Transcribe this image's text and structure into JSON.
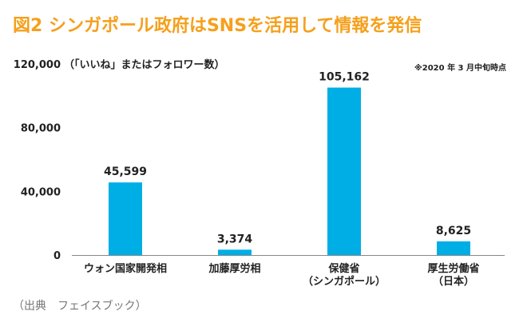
{
  "figure_title": "図2 シンガポール政府はSNSを活用して情報を発信",
  "note": "※2020 年 3 月中旬時点",
  "source": "（出典　フェイスブック）",
  "chart_data": {
    "type": "bar",
    "categories": [
      [
        "ウォン国家開発相"
      ],
      [
        "加藤厚労相"
      ],
      [
        "保健省",
        "（シンガポール）"
      ],
      [
        "厚生労働省",
        "（日本）"
      ]
    ],
    "values": [
      45599,
      3374,
      105162,
      8625
    ],
    "value_labels": [
      "45,599",
      "3,374",
      "105,162",
      "8,625"
    ],
    "ylabel": "（「いいね」またはフォロワー数）",
    "yticks": [
      0,
      40000,
      80000,
      120000
    ],
    "ytick_labels": [
      "0",
      "40,000",
      "80,000",
      "120,000"
    ],
    "ylim": [
      0,
      120000
    ],
    "grid": false,
    "colors": {
      "bar": "#00aee6",
      "axis": "#888888",
      "text": "#222222"
    }
  }
}
